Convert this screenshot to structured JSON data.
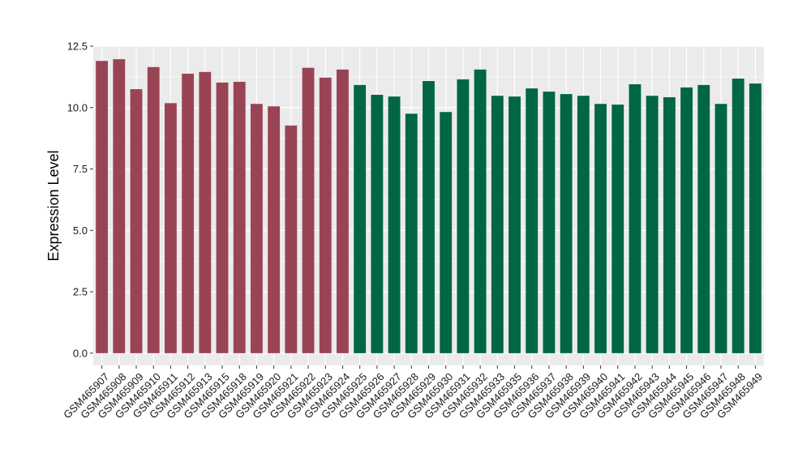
{
  "chart_data": {
    "type": "bar",
    "ylabel": "Expression Level",
    "xlabel": "",
    "ylim": [
      -0.5,
      12.5
    ],
    "yticks": [
      0.0,
      2.5,
      5.0,
      7.5,
      10.0,
      12.5
    ],
    "ytick_labels": [
      "0.0",
      "2.5",
      "5.0",
      "7.5",
      "10.0",
      "12.5"
    ],
    "grid": true,
    "legend": "none",
    "colors": {
      "group1": "#994455",
      "group2": "#006644",
      "panel_bg": "#ebebeb",
      "grid": "#ffffff"
    },
    "categories": [
      "GSM465907",
      "GSM465908",
      "GSM465909",
      "GSM465910",
      "GSM465911",
      "GSM465912",
      "GSM465913",
      "GSM465915",
      "GSM465918",
      "GSM465919",
      "GSM465920",
      "GSM465921",
      "GSM465922",
      "GSM465923",
      "GSM465924",
      "GSM465925",
      "GSM465926",
      "GSM465927",
      "GSM465928",
      "GSM465929",
      "GSM465930",
      "GSM465931",
      "GSM465932",
      "GSM465933",
      "GSM465935",
      "GSM465936",
      "GSM465937",
      "GSM465938",
      "GSM465939",
      "GSM465940",
      "GSM465941",
      "GSM465942",
      "GSM465943",
      "GSM465944",
      "GSM465945",
      "GSM465946",
      "GSM465947",
      "GSM465948",
      "GSM465949"
    ],
    "values": [
      11.9,
      11.97,
      10.75,
      11.65,
      10.18,
      11.38,
      11.45,
      11.02,
      11.05,
      10.15,
      10.05,
      9.27,
      11.62,
      11.22,
      11.55,
      10.92,
      10.52,
      10.45,
      9.75,
      11.08,
      9.82,
      11.15,
      11.55,
      10.48,
      10.45,
      10.78,
      10.65,
      10.55,
      10.48,
      10.15,
      10.12,
      10.95,
      10.48,
      10.42,
      10.82,
      10.92,
      10.15,
      11.18,
      10.98
    ],
    "groups": [
      1,
      1,
      1,
      1,
      1,
      1,
      1,
      1,
      1,
      1,
      1,
      1,
      1,
      1,
      1,
      2,
      2,
      2,
      2,
      2,
      2,
      2,
      2,
      2,
      2,
      2,
      2,
      2,
      2,
      2,
      2,
      2,
      2,
      2,
      2,
      2,
      2,
      2,
      2
    ]
  }
}
